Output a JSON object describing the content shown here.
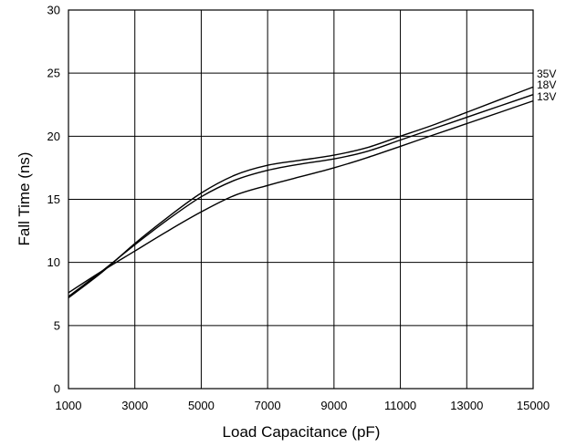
{
  "chart_data": {
    "type": "line",
    "title": "",
    "xlabel": "Load Capacitance (pF)",
    "ylabel": "Fall Time (ns)",
    "xlim": [
      1000,
      15000
    ],
    "ylim": [
      0,
      30
    ],
    "xticks": [
      1000,
      3000,
      5000,
      7000,
      9000,
      11000,
      13000,
      15000
    ],
    "yticks": [
      0,
      5,
      10,
      15,
      20,
      25,
      30
    ],
    "grid": true,
    "legend": "none",
    "series": [
      {
        "name": "35V",
        "x": [
          1000,
          2000,
          3000,
          4000,
          5000,
          6000,
          7000,
          8000,
          9000,
          10000,
          11000,
          12000,
          13000,
          14000,
          15000
        ],
        "values": [
          7.2,
          9.2,
          11.5,
          13.6,
          15.5,
          16.9,
          17.7,
          18.1,
          18.5,
          19.1,
          20.0,
          20.9,
          21.9,
          22.9,
          23.9
        ]
      },
      {
        "name": "18V",
        "x": [
          1000,
          2000,
          3000,
          4000,
          5000,
          6000,
          7000,
          8000,
          9000,
          10000,
          11000,
          12000,
          13000,
          14000,
          15000
        ],
        "values": [
          7.3,
          9.3,
          11.4,
          13.4,
          15.2,
          16.5,
          17.3,
          17.8,
          18.2,
          18.8,
          19.7,
          20.6,
          21.5,
          22.4,
          23.3
        ]
      },
      {
        "name": "13V",
        "x": [
          1000,
          2000,
          3000,
          4000,
          5000,
          6000,
          7000,
          8000,
          9000,
          10000,
          11000,
          12000,
          13000,
          14000,
          15000
        ],
        "values": [
          7.6,
          9.3,
          10.9,
          12.5,
          14.0,
          15.3,
          16.1,
          16.8,
          17.5,
          18.3,
          19.2,
          20.1,
          21.0,
          21.9,
          22.8
        ]
      }
    ]
  }
}
